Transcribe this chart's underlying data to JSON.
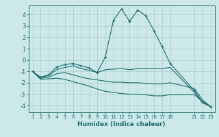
{
  "background_color": "#cce8e8",
  "grid_color": "#aacccc",
  "line_color": "#1a6b6b",
  "xlabel": "Humidex (Indice chaleur)",
  "xlim": [
    0.5,
    23.5
  ],
  "ylim": [
    -4.6,
    4.8
  ],
  "xticks": [
    1,
    2,
    3,
    4,
    5,
    6,
    7,
    8,
    9,
    10,
    11,
    12,
    13,
    14,
    15,
    16,
    17,
    18,
    21,
    22,
    23
  ],
  "yticks": [
    -4,
    -3,
    -2,
    -1,
    0,
    1,
    2,
    3,
    4
  ],
  "series": [
    {
      "x": [
        1,
        2,
        3,
        4,
        5,
        6,
        7,
        8,
        9,
        10,
        11,
        12,
        13,
        14,
        15,
        16,
        17,
        18,
        21,
        22,
        23
      ],
      "y": [
        -1.0,
        -1.5,
        -1.3,
        -0.6,
        -0.4,
        -0.3,
        -0.5,
        -0.7,
        -1.1,
        0.3,
        3.5,
        4.5,
        3.4,
        4.4,
        3.9,
        2.6,
        1.2,
        -0.3,
        -2.7,
        -3.7,
        -4.1
      ],
      "marker": true
    },
    {
      "x": [
        1,
        2,
        3,
        4,
        5,
        6,
        7,
        8,
        9,
        10,
        11,
        12,
        13,
        14,
        15,
        16,
        17,
        18,
        21,
        22,
        23
      ],
      "y": [
        -1.0,
        -1.55,
        -1.35,
        -0.85,
        -0.65,
        -0.5,
        -0.75,
        -0.9,
        -1.1,
        -0.85,
        -0.8,
        -0.75,
        -0.85,
        -0.75,
        -0.75,
        -0.75,
        -0.75,
        -0.65,
        -2.85,
        -3.75,
        -4.1
      ],
      "marker": false
    },
    {
      "x": [
        1,
        2,
        3,
        4,
        5,
        6,
        7,
        8,
        9,
        10,
        11,
        12,
        13,
        14,
        15,
        16,
        17,
        18,
        21,
        22,
        23
      ],
      "y": [
        -1.0,
        -1.6,
        -1.5,
        -1.2,
        -1.1,
        -1.3,
        -1.5,
        -1.65,
        -1.75,
        -1.85,
        -1.95,
        -1.95,
        -2.0,
        -2.0,
        -2.05,
        -2.1,
        -2.1,
        -2.0,
        -2.5,
        -3.5,
        -4.1
      ],
      "marker": false
    },
    {
      "x": [
        1,
        2,
        3,
        4,
        5,
        6,
        7,
        8,
        9,
        10,
        11,
        12,
        13,
        14,
        15,
        16,
        17,
        18,
        21,
        22,
        23
      ],
      "y": [
        -1.0,
        -1.7,
        -1.65,
        -1.6,
        -1.7,
        -1.9,
        -2.1,
        -2.3,
        -2.55,
        -2.75,
        -2.85,
        -2.95,
        -3.0,
        -3.0,
        -3.05,
        -3.15,
        -3.15,
        -3.05,
        -3.05,
        -3.65,
        -4.1
      ],
      "marker": false
    }
  ]
}
